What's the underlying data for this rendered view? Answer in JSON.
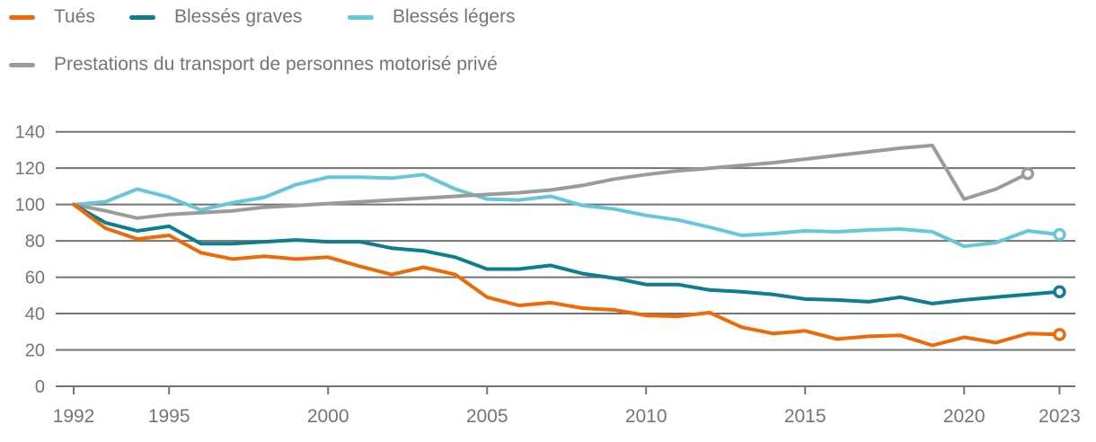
{
  "chart_data": {
    "type": "line",
    "title": "",
    "xlabel": "",
    "ylabel": "",
    "ylim": [
      0,
      140
    ],
    "grid": "horizontal",
    "legend_position": "top-left",
    "x": [
      1992,
      1993,
      1994,
      1995,
      1996,
      1997,
      1998,
      1999,
      2000,
      2001,
      2002,
      2003,
      2004,
      2005,
      2006,
      2007,
      2008,
      2009,
      2010,
      2011,
      2012,
      2013,
      2014,
      2015,
      2016,
      2017,
      2018,
      2019,
      2020,
      2021,
      2022,
      2023
    ],
    "x_tick_labels": [
      "1992",
      "1995",
      "2000",
      "2005",
      "2010",
      "2015",
      "2020",
      "2023"
    ],
    "y_ticks": [
      0,
      20,
      40,
      60,
      80,
      100,
      120,
      140
    ],
    "series": [
      {
        "name": "Tués",
        "color": "#ee6a07",
        "end_marker": true,
        "values": [
          100,
          87,
          81,
          83,
          73.5,
          70,
          71.5,
          70,
          71,
          66,
          61.5,
          65.5,
          61.5,
          49,
          44.5,
          46,
          43,
          42,
          39,
          38.5,
          40.5,
          32.5,
          29,
          30.5,
          26,
          27.5,
          28,
          22.5,
          27,
          24,
          29,
          28.5
        ]
      },
      {
        "name": "Blessés graves",
        "color": "#0d7d8f",
        "end_marker": true,
        "values": [
          100,
          90,
          85.5,
          88,
          78.5,
          78.5,
          79.5,
          80.5,
          79.5,
          79.5,
          76,
          74.5,
          71,
          64.5,
          64.5,
          66.5,
          62,
          59.5,
          56,
          56,
          53,
          52,
          50.5,
          48,
          47.5,
          46.5,
          49,
          45.5,
          47.5,
          49,
          50.5,
          52
        ]
      },
      {
        "name": "Blessés légers",
        "color": "#65c8d8",
        "end_marker": true,
        "values": [
          100,
          101.5,
          108.5,
          104,
          97,
          101,
          104,
          111,
          115,
          115,
          114.5,
          116.5,
          108.5,
          103,
          102.5,
          104.5,
          99.5,
          97.5,
          94,
          91.5,
          87.5,
          83,
          84,
          85.5,
          85,
          86,
          86.5,
          85,
          77,
          79,
          85.5,
          83.5
        ]
      },
      {
        "name": "Prestations du transport de personnes motorisé privé",
        "color": "#9b9b9b",
        "end_marker": true,
        "values": [
          100,
          96.5,
          92.5,
          94.5,
          95.5,
          96.5,
          98.5,
          99.5,
          100.5,
          101.5,
          102.5,
          103.5,
          104.5,
          105.5,
          106.5,
          108,
          110.5,
          114,
          116.5,
          118.5,
          120,
          121.5,
          123,
          125,
          127,
          129,
          131,
          132.5,
          103,
          108.5,
          117,
          null
        ]
      }
    ],
    "axis_style": {
      "text_color": "#757575",
      "grid_color": "#737373"
    }
  }
}
